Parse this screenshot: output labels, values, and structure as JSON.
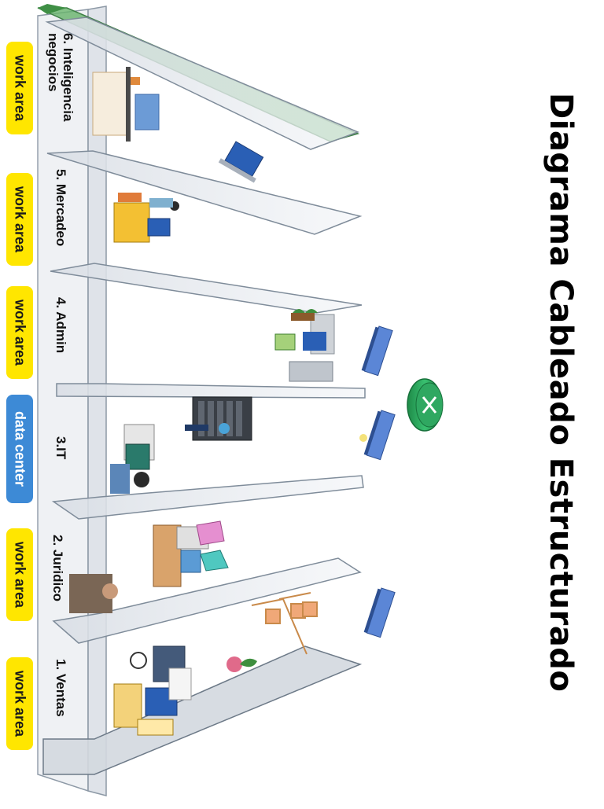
{
  "title": "Diagrama Cableado Estructurado",
  "floors": [
    {
      "id": "ventas",
      "label": "1. Ventas",
      "area": "work area"
    },
    {
      "id": "juridico",
      "label": "2. Juridico",
      "area": "work area"
    },
    {
      "id": "it",
      "label": "3.IT",
      "area": "data center"
    },
    {
      "id": "admin",
      "label": "4. Admin",
      "area": "work area"
    },
    {
      "id": "mercadeo",
      "label": "5. Mercadeo",
      "area": "work area"
    },
    {
      "id": "inteligencia",
      "label_line1": "6. Inteligencia",
      "label_line2": "negocios",
      "area": "work area"
    }
  ],
  "colors": {
    "work_area": "#ffe600",
    "data_center": "#3d8ad6",
    "router": "#27a85a",
    "switch": "#5b86d6",
    "roof": "#66b36a",
    "shelf": "#e8ebef",
    "shelf_edge": "#7f8c9a"
  },
  "devices": {
    "router": "router-icon",
    "switches": [
      "switch-icon",
      "switch-icon",
      "switch-icon"
    ]
  }
}
